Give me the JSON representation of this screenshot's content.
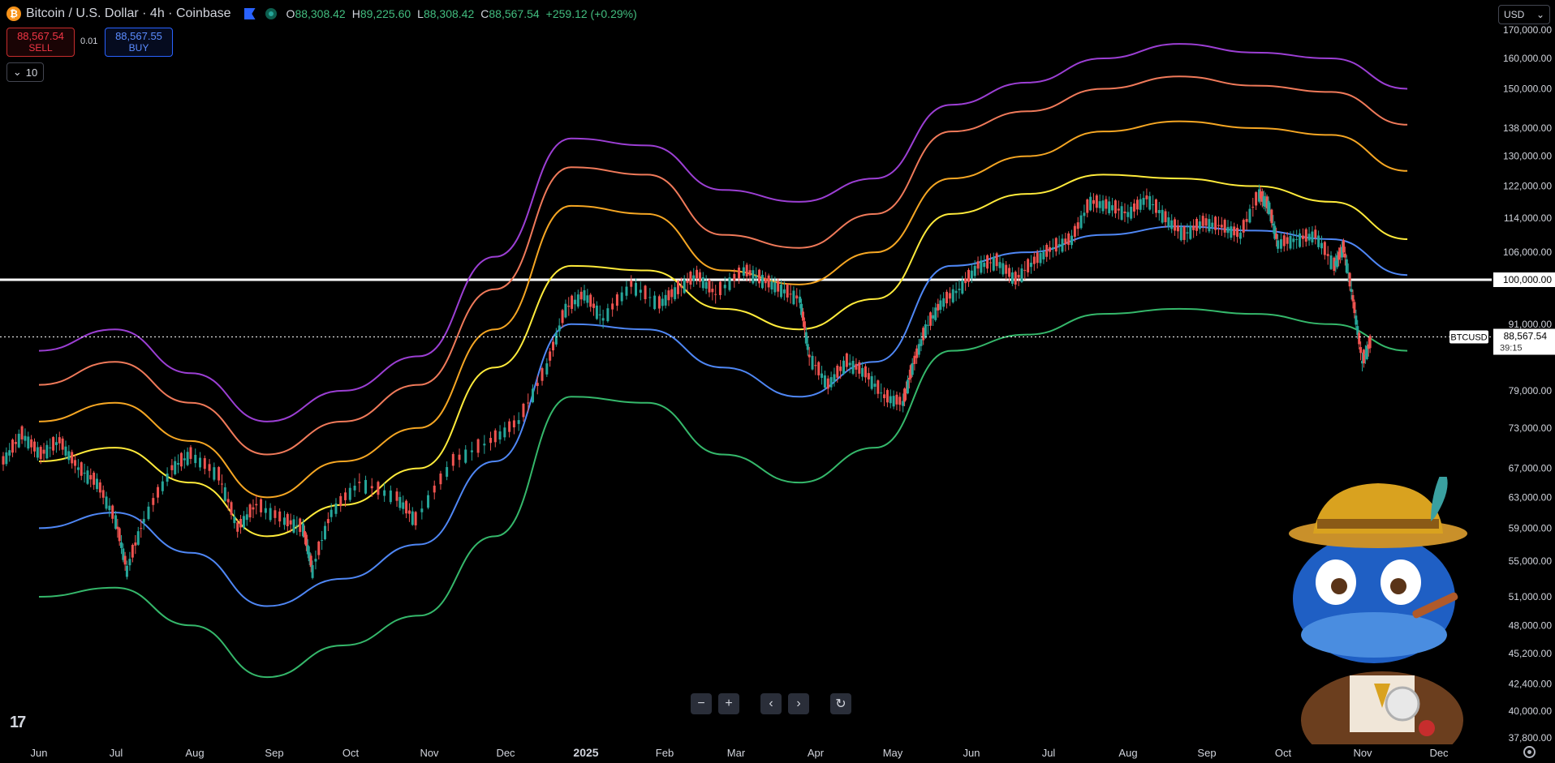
{
  "header": {
    "symbol_title": "Bitcoin / U.S. Dollar · 4h · Coinbase",
    "coin_icon": "bitcoin-icon",
    "ohlc": {
      "o_label": "O",
      "o_value": "88,308.42",
      "h_label": "H",
      "h_value": "89,225.60",
      "l_label": "L",
      "l_value": "88,308.42",
      "c_label": "C",
      "c_value": "88,567.54",
      "change": "+259.12 (+0.29%)"
    }
  },
  "trade": {
    "sell_price": "88,567.54",
    "sell_label": "SELL",
    "quantity": "0.01",
    "buy_price": "88,567.55",
    "buy_label": "BUY",
    "lots_value": "10"
  },
  "currency": {
    "selected": "USD"
  },
  "price_axis": {
    "labels": [
      "170,000.00",
      "160,000.00",
      "150,000.00",
      "138,000.00",
      "130,000.00",
      "122,000.00",
      "114,000.00",
      "106,000.00",
      "100,000.00",
      "91,000.00",
      "79,000.00",
      "73,000.00",
      "67,000.00",
      "63,000.00",
      "59,000.00",
      "55,000.00",
      "51,000.00",
      "48,000.00",
      "45,200.00",
      "42,400.00",
      "40,000.00",
      "37,800.00"
    ],
    "highlight_level": "100,000.00",
    "last_price": "88,567.54",
    "countdown": "39:15",
    "symbol_tag": "BTCUSD"
  },
  "time_axis": {
    "labels": [
      "Jun",
      "Jul",
      "Aug",
      "Sep",
      "Oct",
      "Nov",
      "Dec",
      "2025",
      "Feb",
      "Mar",
      "Apr",
      "May",
      "Jun",
      "Jul",
      "Aug",
      "Sep",
      "Oct",
      "Nov",
      "Dec"
    ]
  },
  "nav": {
    "zoom_out": "−",
    "zoom_in": "+",
    "scroll_left": "‹",
    "scroll_right": "›",
    "reset": "↻"
  },
  "logo_text": "17",
  "chart_data": {
    "type": "line",
    "x": [
      "Jun",
      "Jul",
      "Aug",
      "Sep",
      "Oct",
      "Nov",
      "Dec",
      "2025",
      "Feb",
      "Mar",
      "Apr",
      "May",
      "Jun",
      "Jul",
      "Aug",
      "Sep",
      "Oct",
      "Nov",
      "Dec"
    ],
    "yscale": "log",
    "ylim": [
      37800,
      175000
    ],
    "horizontal_line": 100000,
    "series": [
      {
        "color": "#9c3fd4",
        "values": [
          86000,
          90000,
          82000,
          74000,
          79000,
          85000,
          105000,
          135000,
          133000,
          121000,
          118000,
          124000,
          145000,
          152000,
          160000,
          165000,
          162000,
          160000,
          150000
        ]
      },
      {
        "color": "#f07a5a",
        "values": [
          80000,
          84000,
          77000,
          69000,
          74000,
          80000,
          98000,
          127000,
          125000,
          110000,
          107000,
          115000,
          137000,
          143000,
          150000,
          154000,
          151000,
          149000,
          139000
        ]
      },
      {
        "color": "#f5a623",
        "values": [
          74000,
          77000,
          71000,
          63000,
          68000,
          73000,
          90000,
          117000,
          115000,
          102000,
          99000,
          106000,
          124000,
          130000,
          137000,
          140000,
          138000,
          136000,
          126000
        ]
      },
      {
        "color": "#ffeb3b",
        "values": [
          68000,
          70000,
          65000,
          58000,
          62000,
          67000,
          83000,
          103000,
          102000,
          94000,
          90000,
          96000,
          115000,
          120000,
          125000,
          124000,
          122000,
          118000,
          109000
        ]
      },
      {
        "color": "#4f87f5",
        "values": [
          59000,
          61000,
          56000,
          50000,
          53000,
          57000,
          68000,
          91000,
          90000,
          83000,
          78000,
          84000,
          103000,
          106000,
          110000,
          112000,
          111000,
          109000,
          101000
        ]
      },
      {
        "color": "#35b86b",
        "values": [
          51000,
          52000,
          48000,
          43000,
          46000,
          49000,
          58000,
          78000,
          77000,
          69000,
          65000,
          70000,
          86000,
          89000,
          93000,
          94000,
          93000,
          91000,
          86000
        ]
      }
    ],
    "price_path": [
      [
        0,
        68000
      ],
      [
        10,
        72000
      ],
      [
        20,
        69000
      ],
      [
        30,
        71000
      ],
      [
        40,
        67000
      ],
      [
        50,
        65000
      ],
      [
        60,
        60000
      ],
      [
        66,
        54000
      ],
      [
        75,
        60000
      ],
      [
        90,
        67000
      ],
      [
        100,
        69000
      ],
      [
        115,
        66000
      ],
      [
        125,
        59000
      ],
      [
        135,
        62000
      ],
      [
        150,
        60000
      ],
      [
        160,
        59000
      ],
      [
        165,
        54000
      ],
      [
        175,
        61000
      ],
      [
        190,
        65000
      ],
      [
        210,
        63000
      ],
      [
        220,
        60000
      ],
      [
        240,
        68000
      ],
      [
        260,
        71000
      ],
      [
        275,
        74000
      ],
      [
        290,
        83000
      ],
      [
        300,
        94000
      ],
      [
        310,
        97000
      ],
      [
        320,
        92000
      ],
      [
        335,
        99000
      ],
      [
        350,
        95000
      ],
      [
        360,
        98000
      ],
      [
        370,
        101000
      ],
      [
        380,
        97000
      ],
      [
        395,
        102000
      ],
      [
        405,
        100000
      ],
      [
        415,
        98000
      ],
      [
        425,
        96000
      ],
      [
        430,
        85000
      ],
      [
        440,
        80000
      ],
      [
        450,
        84000
      ],
      [
        460,
        82000
      ],
      [
        470,
        78000
      ],
      [
        480,
        77000
      ],
      [
        485,
        83000
      ],
      [
        492,
        90000
      ],
      [
        500,
        95000
      ],
      [
        510,
        98000
      ],
      [
        520,
        103000
      ],
      [
        530,
        104000
      ],
      [
        540,
        100000
      ],
      [
        550,
        104000
      ],
      [
        560,
        107000
      ],
      [
        570,
        109000
      ],
      [
        580,
        118000
      ],
      [
        590,
        117000
      ],
      [
        600,
        115000
      ],
      [
        610,
        119000
      ],
      [
        620,
        114000
      ],
      [
        630,
        110000
      ],
      [
        640,
        113000
      ],
      [
        650,
        112000
      ],
      [
        660,
        110000
      ],
      [
        670,
        120000
      ],
      [
        675,
        117000
      ],
      [
        680,
        108000
      ],
      [
        690,
        109000
      ],
      [
        700,
        110000
      ],
      [
        710,
        103000
      ],
      [
        715,
        107000
      ],
      [
        720,
        96000
      ],
      [
        725,
        84000
      ],
      [
        730,
        88000
      ]
    ],
    "price_path_xmax": 730
  }
}
